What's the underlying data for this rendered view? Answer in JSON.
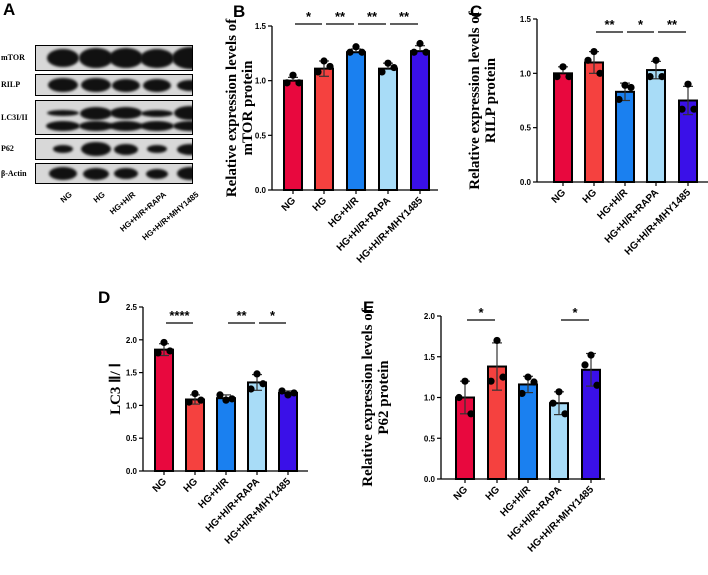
{
  "panel_letters": {
    "a": "A",
    "b": "B",
    "c": "C",
    "d": "D",
    "e": "E"
  },
  "blot": {
    "rows": [
      "mTOR",
      "RILP",
      "LC3I/II",
      "P62",
      "β-Actin"
    ],
    "lanes": [
      "NG",
      "HG",
      "HG+H/R",
      "HG+H/R+RAPA",
      "HG+H/R+MHY1485"
    ]
  },
  "colors": [
    "#e8083e",
    "#f5413f",
    "#1a80f0",
    "#a8dcf7",
    "#3a10e8"
  ],
  "chart_data": [
    {
      "id": "b",
      "type": "bar",
      "title": "",
      "ylabel": [
        "Relative expression levels of",
        "mTOR protein"
      ],
      "ylim": [
        0,
        1.5
      ],
      "yticks": [
        "0.0",
        "0.5",
        "1.0",
        "1.5"
      ],
      "categories": [
        "NG",
        "HG",
        "HG+H/R",
        "HG+H/R+RAPA",
        "HG+H/R+MHY1485"
      ],
      "values": [
        1.0,
        1.11,
        1.26,
        1.11,
        1.27
      ],
      "errors": [
        0.03,
        0.07,
        0.03,
        0.05,
        0.05
      ],
      "points": [
        [
          1.05,
          0.98,
          0.98
        ],
        [
          1.18,
          1.08,
          1.13
        ],
        [
          1.31,
          1.26,
          1.26
        ],
        [
          1.16,
          1.08,
          1.12
        ],
        [
          1.34,
          1.26,
          1.26
        ]
      ],
      "significance": [
        {
          "from": 0,
          "to": 1,
          "label": "*"
        },
        {
          "from": 1,
          "to": 2,
          "label": "**"
        },
        {
          "from": 2,
          "to": 3,
          "label": "**"
        },
        {
          "from": 3,
          "to": 4,
          "label": "**"
        }
      ]
    },
    {
      "id": "c",
      "type": "bar",
      "title": "",
      "ylabel": [
        "Relative expression levels of",
        "RILP protein"
      ],
      "ylim": [
        0,
        1.5
      ],
      "yticks": [
        "0.0",
        "0.5",
        "1.0",
        "1.5"
      ],
      "categories": [
        "NG",
        "HG",
        "HG+H/R",
        "HG+H/R+RAPA",
        "HG+H/R+MHY1485"
      ],
      "values": [
        1.0,
        1.1,
        0.83,
        1.03,
        0.75
      ],
      "errors": [
        0.06,
        0.1,
        0.08,
        0.08,
        0.13
      ],
      "points": [
        [
          1.06,
          0.97,
          0.97
        ],
        [
          1.2,
          1.12,
          1.0
        ],
        [
          0.89,
          0.76,
          0.87
        ],
        [
          1.12,
          0.97,
          0.97
        ],
        [
          0.9,
          0.67,
          0.67
        ]
      ],
      "significance": [
        {
          "from": 1,
          "to": 2,
          "label": "**"
        },
        {
          "from": 2,
          "to": 3,
          "label": "*"
        },
        {
          "from": 3,
          "to": 4,
          "label": "**"
        }
      ]
    },
    {
      "id": "d",
      "type": "bar",
      "title": "",
      "ylabel": [
        "LC3 Ⅱ/ Ⅰ"
      ],
      "ylim": [
        0,
        2.5
      ],
      "yticks": [
        "0.0",
        "0.5",
        "1.0",
        "1.5",
        "2.0",
        "2.5"
      ],
      "categories": [
        "NG",
        "HG",
        "HG+H/R",
        "HG+H/R+RAPA",
        "HG+H/R+MHY1485"
      ],
      "values": [
        1.85,
        1.09,
        1.11,
        1.35,
        1.19
      ],
      "errors": [
        0.09,
        0.07,
        0.05,
        0.12,
        0.03
      ],
      "points": [
        [
          1.96,
          1.8,
          1.83
        ],
        [
          1.18,
          1.05,
          1.08
        ],
        [
          1.08,
          1.16,
          1.1
        ],
        [
          1.48,
          1.25,
          1.33
        ],
        [
          1.16,
          1.22,
          1.19
        ]
      ],
      "significance": [
        {
          "from": 0,
          "to": 1,
          "label": "****"
        },
        {
          "from": 2,
          "to": 3,
          "label": "**"
        },
        {
          "from": 3,
          "to": 4,
          "label": "*"
        }
      ]
    },
    {
      "id": "e",
      "type": "bar",
      "title": "",
      "ylabel": [
        "Relative expression levels of",
        "P62 protein"
      ],
      "ylim": [
        0,
        2.0
      ],
      "yticks": [
        "0.0",
        "0.5",
        "1.0",
        "1.5",
        "2.0"
      ],
      "categories": [
        "NG",
        "HG",
        "HG+H/R",
        "HG+H/R+RAPA",
        "HG+H/R+MHY1485"
      ],
      "values": [
        1.0,
        1.38,
        1.16,
        0.93,
        1.34
      ],
      "errors": [
        0.2,
        0.29,
        0.1,
        0.14,
        0.2
      ],
      "points": [
        [
          1.2,
          1.0,
          0.8
        ],
        [
          1.7,
          1.2,
          1.25
        ],
        [
          1.25,
          1.05,
          1.19
        ],
        [
          1.07,
          0.93,
          0.8
        ],
        [
          1.52,
          1.4,
          1.15
        ]
      ],
      "significance": [
        {
          "from": 0,
          "to": 1,
          "label": "*"
        },
        {
          "from": 3,
          "to": 4,
          "label": "*"
        }
      ]
    }
  ]
}
